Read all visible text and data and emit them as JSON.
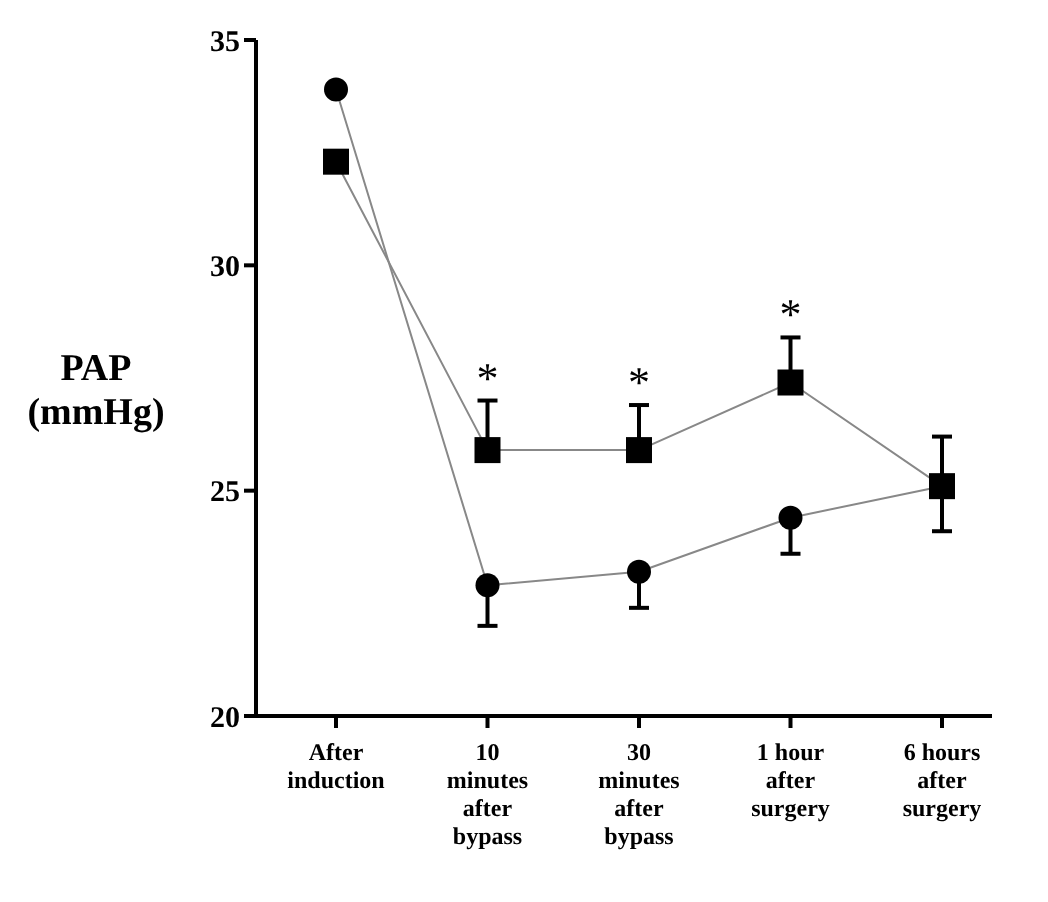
{
  "chart_data": {
    "type": "line",
    "ylabel": "PAP\n(mmHg)",
    "categories": [
      "After\ninduction",
      "10\nminutes\nafter\nbypass",
      "30\nminutes\nafter\nbypass",
      "1 hour\nafter\nsurgery",
      "6 hours\nafter\nsurgery"
    ],
    "series": [
      {
        "color": "#000000",
        "marker": "circle",
        "values": [
          33.9,
          22.9,
          23.2,
          24.4,
          25.1
        ],
        "errors": [
          null,
          [
            22.0,
            22.9
          ],
          [
            22.4,
            23.2
          ],
          [
            23.6,
            24.4
          ],
          [
            24.1,
            25.1
          ]
        ]
      },
      {
        "color": "#000000",
        "marker": "square",
        "values": [
          32.3,
          25.9,
          25.9,
          27.4,
          25.1
        ],
        "errors": [
          null,
          [
            25.9,
            27.0
          ],
          [
            25.9,
            26.9
          ],
          [
            27.4,
            28.4
          ],
          [
            25.1,
            26.2
          ]
        ]
      }
    ],
    "ylim": [
      20,
      35
    ],
    "yticks": [
      20,
      25,
      30,
      35
    ],
    "annotations": [
      {
        "text": "*",
        "x": "10\nminutes\nafter\nbypass",
        "y": 27.0
      },
      {
        "text": "*",
        "x": "30\nminutes\nafter\nbypass",
        "y": 26.9
      },
      {
        "text": "*",
        "x": "1 hour\nafter\nsurgery",
        "y": 28.4
      }
    ]
  }
}
